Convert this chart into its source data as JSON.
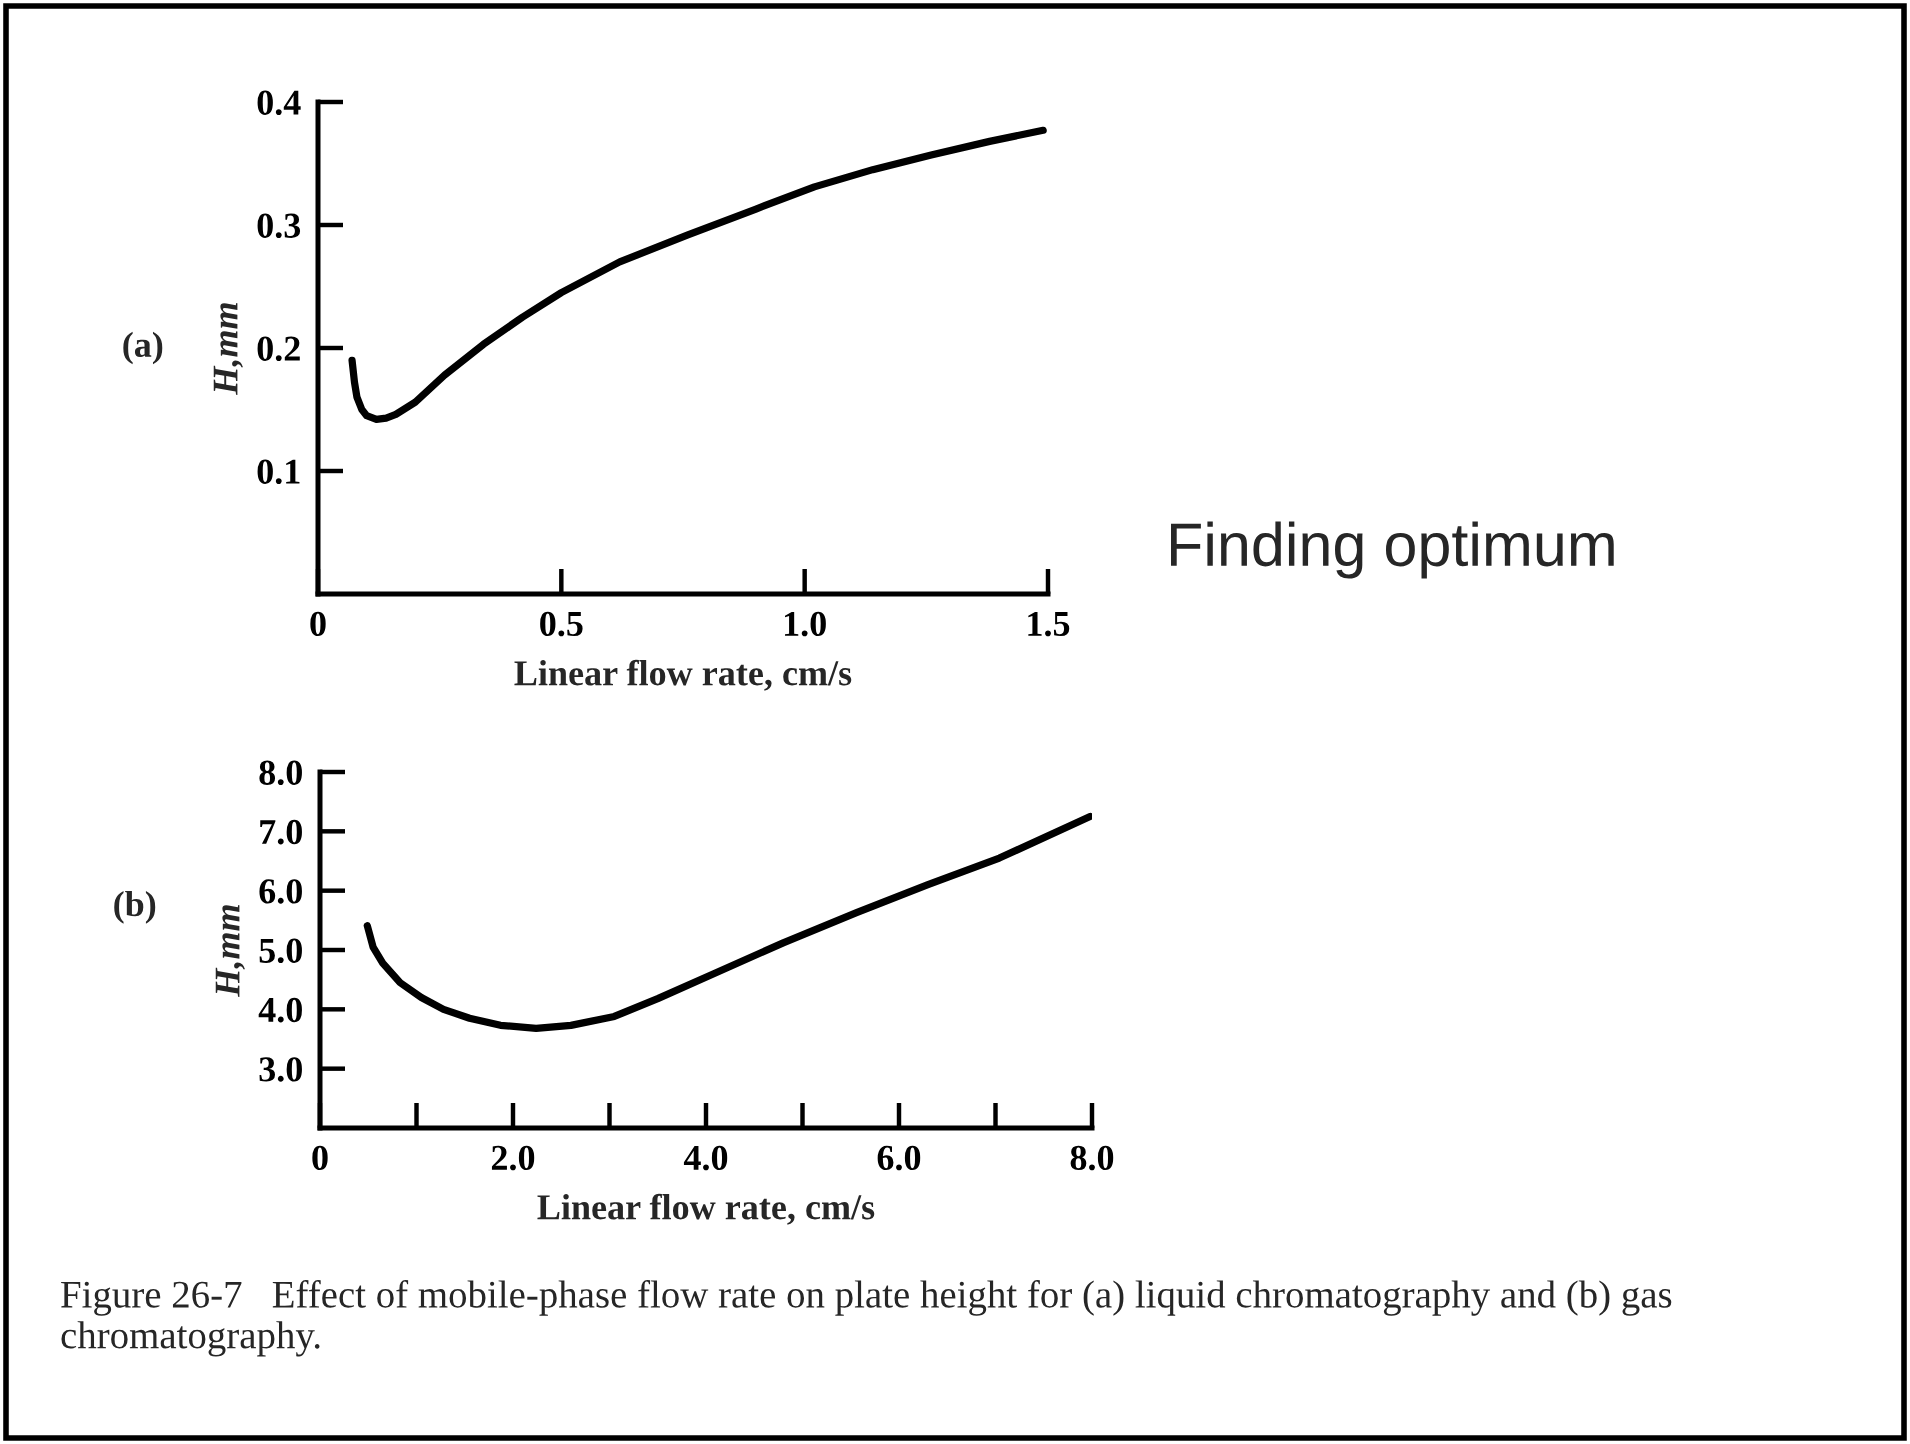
{
  "chart_data": [
    {
      "type": "line",
      "xlabel": "Linear flow rate, cm/s",
      "ylabel": "H,mm",
      "x": [
        0.07,
        0.075,
        0.08,
        0.09,
        0.1,
        0.12,
        0.14,
        0.16,
        0.2,
        0.26,
        0.34,
        0.42,
        0.5,
        0.62,
        0.76,
        0.9,
        1.02,
        1.14,
        1.26,
        1.38,
        1.49
      ],
      "series": [
        {
          "color": "#000000",
          "values": [
            0.19,
            0.172,
            0.16,
            0.15,
            0.145,
            0.142,
            0.143,
            0.146,
            0.156,
            0.178,
            0.203,
            0.225,
            0.245,
            0.27,
            0.292,
            0.313,
            0.331,
            0.345,
            0.357,
            0.368,
            0.377
          ]
        }
      ],
      "xlim": [
        0,
        1.5
      ],
      "ylim": [
        0,
        0.4
      ],
      "xticks": [
        0,
        0.5,
        {
          "value": 1,
          "label": "1.0"
        },
        1.5
      ],
      "yticks": [
        0.1,
        0.2,
        0.3,
        0.4
      ],
      "marker": "none",
      "line_style": "solid",
      "grid": false,
      "annotations": [
        "(a)",
        "Finding optimum"
      ]
    },
    {
      "type": "line",
      "xlabel": "Linear flow rate, cm/s",
      "ylabel": "H,mm",
      "x": [
        0.49,
        0.55,
        0.65,
        0.83,
        1.05,
        1.28,
        1.55,
        1.87,
        2.24,
        2.6,
        3.05,
        3.5,
        4.08,
        4.8,
        5.56,
        6.3,
        7.04,
        7.98
      ],
      "series": [
        {
          "color": "#000000",
          "values": [
            5.41,
            5.05,
            4.78,
            4.45,
            4.2,
            4.0,
            3.85,
            3.73,
            3.68,
            3.73,
            3.88,
            4.18,
            4.6,
            5.12,
            5.63,
            6.1,
            6.55,
            7.25
          ]
        }
      ],
      "xlim": [
        0,
        8
      ],
      "ylim": [
        2,
        8
      ],
      "xticks": [
        0,
        {
          "value": 1,
          "label": null
        },
        {
          "value": 2,
          "label": "2.0"
        },
        {
          "value": 3,
          "label": null
        },
        {
          "value": 4,
          "label": "4.0"
        },
        {
          "value": 5,
          "label": null
        },
        {
          "value": 6,
          "label": "6.0"
        },
        {
          "value": 7,
          "label": null
        },
        {
          "value": 8,
          "label": "8.0"
        }
      ],
      "yticks": [
        {
          "value": 3,
          "label": "3.0"
        },
        {
          "value": 4,
          "label": "4.0"
        },
        {
          "value": 5,
          "label": "5.0"
        },
        {
          "value": 6,
          "label": "6.0"
        },
        {
          "value": 7,
          "label": "7.0"
        },
        {
          "value": 8,
          "label": "8.0"
        }
      ],
      "marker": "none",
      "line_style": "solid",
      "grid": false,
      "annotations": [
        "(b)",
        "Figure 26-7   Effect of mobile-phase flow rate on plate height for (a) liquid chromatography and (b) gas chromatography."
      ]
    }
  ]
}
